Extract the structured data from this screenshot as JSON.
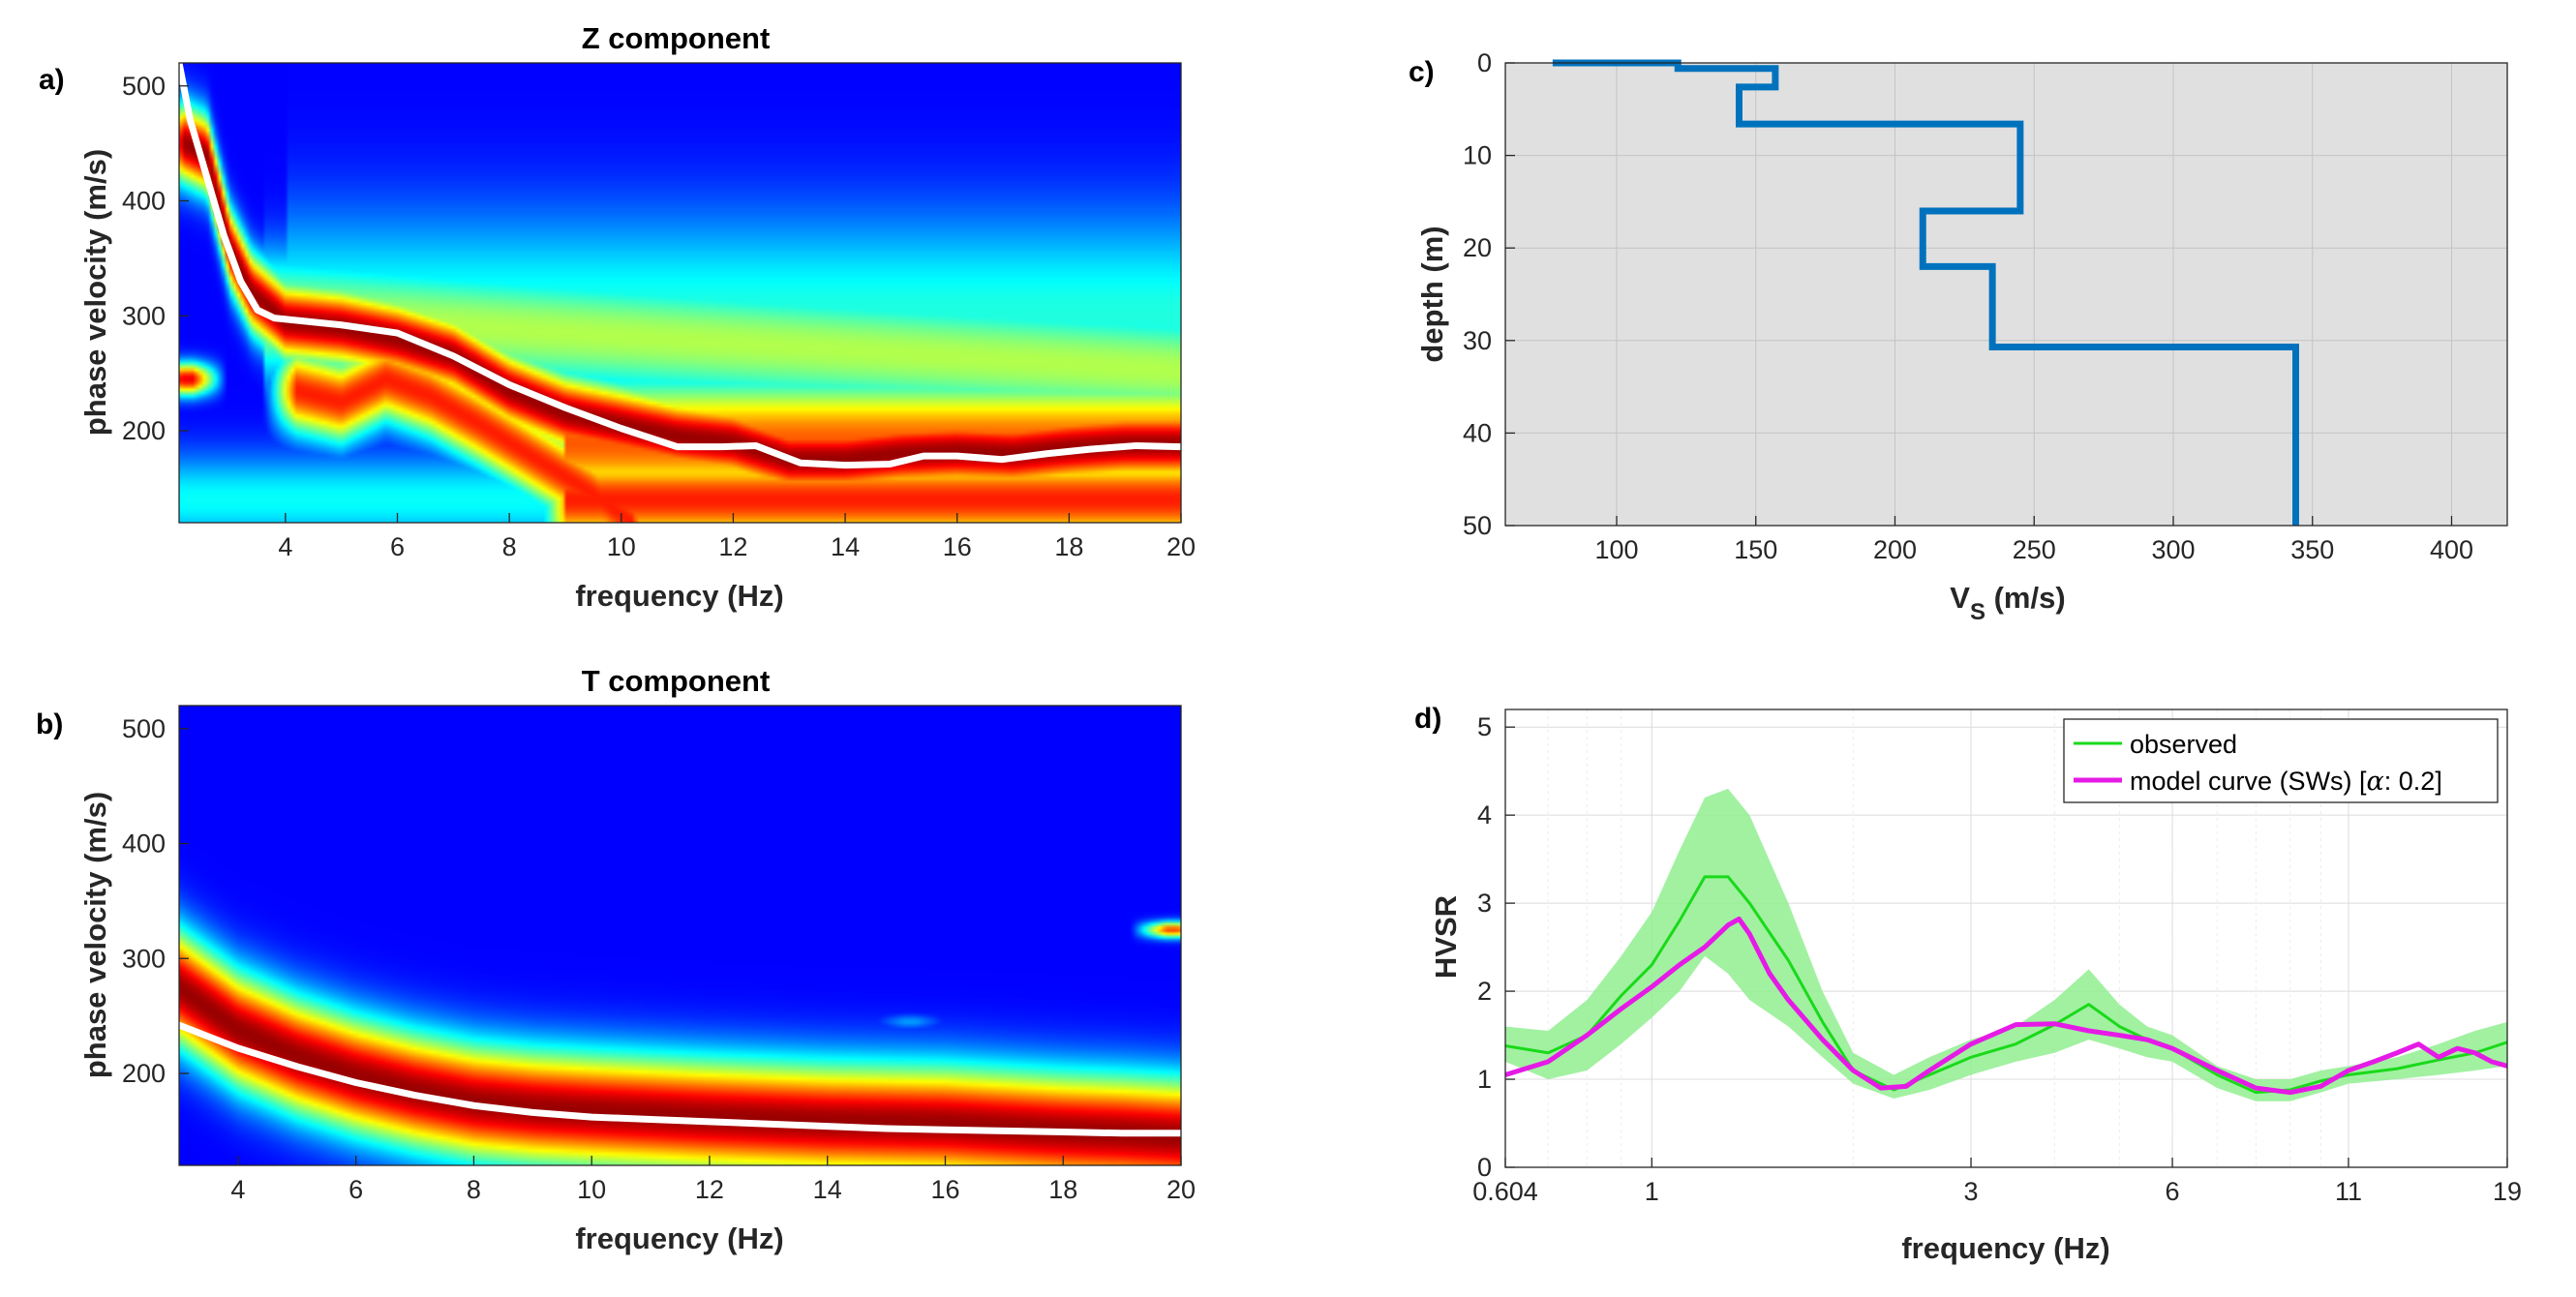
{
  "chart_data": [
    {
      "id": "a",
      "panel_label": "a)",
      "type": "heatmap",
      "title": "Z component",
      "xlabel": "frequency (Hz)",
      "ylabel": "phase velocity (m/s)",
      "xlim": [
        2.1,
        20
      ],
      "ylim": [
        120,
        520
      ],
      "xticks": [
        4,
        6,
        8,
        10,
        12,
        14,
        16,
        18,
        20
      ],
      "yticks": [
        200,
        300,
        400,
        500
      ],
      "colormap": "jet",
      "ridges": [
        {
          "pts": [
            [
              2.2,
              450
            ],
            [
              2.6,
              440
            ],
            [
              3.0,
              360
            ],
            [
              3.4,
              320
            ],
            [
              4,
              295
            ],
            [
              5,
              290
            ],
            [
              6,
              280
            ],
            [
              7,
              265
            ],
            [
              8,
              235
            ],
            [
              9,
              215
            ],
            [
              10,
              205
            ],
            [
              11,
              195
            ],
            [
              12,
              190
            ],
            [
              13,
              175
            ],
            [
              14,
              175
            ],
            [
              15,
              180
            ],
            [
              16,
              182
            ],
            [
              17,
              180
            ],
            [
              18,
              185
            ],
            [
              19,
              188
            ],
            [
              20,
              188
            ]
          ],
          "w": 3.4,
          "amp": 1.0
        },
        {
          "pts": [
            [
              2.15,
              245
            ],
            [
              2.35,
              245
            ]
          ],
          "w": 1.4,
          "amp": 0.9
        },
        {
          "pts": [
            [
              4.2,
              235
            ],
            [
              5,
              225
            ],
            [
              5.8,
              245
            ],
            [
              6.6,
              230
            ],
            [
              7.5,
              205
            ],
            [
              8.5,
              175
            ],
            [
              9.5,
              145
            ],
            [
              10.2,
              120
            ]
          ],
          "w": 3.6,
          "amp": 0.85
        },
        {
          "pts": [
            [
              9,
              140
            ],
            [
              12,
              140
            ],
            [
              16,
              135
            ],
            [
              20,
              135
            ]
          ],
          "w": 8,
          "amp": 0.7
        }
      ],
      "picked_curve": {
        "x": [
          2.1,
          2.3,
          2.6,
          2.9,
          3.2,
          3.5,
          3.8,
          4.2,
          5,
          6,
          7,
          8,
          9,
          10,
          11,
          11.8,
          12.4,
          13.2,
          14,
          14.8,
          15.4,
          16,
          16.8,
          17.6,
          18.4,
          19.2,
          20
        ],
        "y": [
          520,
          470,
          420,
          370,
          330,
          305,
          298,
          296,
          292,
          285,
          265,
          240,
          220,
          202,
          186,
          186,
          187,
          172,
          170,
          171,
          178,
          178,
          175,
          180,
          184,
          187,
          186
        ]
      },
      "picked_color": "#ffffff"
    },
    {
      "id": "b",
      "panel_label": "b)",
      "type": "heatmap",
      "title": "T component",
      "xlabel": "frequency (Hz)",
      "ylabel": "phase velocity (m/s)",
      "xlim": [
        3,
        20
      ],
      "ylim": [
        120,
        520
      ],
      "xticks": [
        4,
        6,
        8,
        10,
        12,
        14,
        16,
        18,
        20
      ],
      "yticks": [
        200,
        300,
        400,
        500
      ],
      "colormap": "jet",
      "ridges": [
        {
          "pts": [
            [
              3,
              275
            ],
            [
              4,
              238
            ],
            [
              5,
              215
            ],
            [
              6,
              198
            ],
            [
              7,
              185
            ],
            [
              8,
              175
            ],
            [
              9,
              170
            ],
            [
              10,
              167
            ],
            [
              12,
              162
            ],
            [
              14,
              158
            ],
            [
              16,
              156
            ],
            [
              18,
              150
            ],
            [
              19,
              148
            ],
            [
              20,
              145
            ]
          ],
          "w": 5,
          "amp": 1.0
        },
        {
          "pts": [
            [
              19.75,
              325
            ],
            [
              19.95,
              325
            ]
          ],
          "w": 0.7,
          "amp": 0.8
        },
        {
          "pts": [
            [
              15.3,
              245
            ],
            [
              15.5,
              245
            ]
          ],
          "w": 0.6,
          "amp": 0.18
        }
      ],
      "picked_curve": {
        "x": [
          3,
          4,
          5,
          6,
          7,
          8,
          9,
          10,
          11,
          12,
          13,
          14,
          15,
          16,
          17,
          18,
          19,
          20
        ],
        "y": [
          242,
          222,
          206,
          192,
          181,
          172,
          166,
          162,
          160,
          158,
          156,
          154,
          152,
          151,
          150,
          149,
          148,
          148
        ]
      },
      "picked_color": "#ffffff"
    },
    {
      "id": "c",
      "panel_label": "c)",
      "type": "line",
      "xlabel": "V",
      "xlabel_sub": "S",
      "xlabel_unit": " (m/s)",
      "ylabel": "depth (m)",
      "xlim": [
        60,
        420
      ],
      "ylim": [
        0,
        50
      ],
      "y_reversed": true,
      "xticks": [
        100,
        150,
        200,
        250,
        300,
        350,
        400
      ],
      "yticks": [
        0,
        10,
        20,
        30,
        40,
        50
      ],
      "grid": true,
      "background": "#e0e0e0",
      "color": "#0072bd",
      "profile": {
        "x": [
          77,
          122,
          122,
          157,
          157,
          144,
          144,
          245,
          245,
          210,
          210,
          235,
          235,
          344,
          344
        ],
        "y": [
          0,
          0,
          0.6,
          0.6,
          2.6,
          2.6,
          6.6,
          6.6,
          16,
          16,
          22,
          22,
          30.7,
          30.7,
          50
        ]
      }
    },
    {
      "id": "d",
      "panel_label": "d)",
      "type": "line",
      "xlabel": "frequency (Hz)",
      "ylabel": "HVSR",
      "x_scale": "log",
      "xlim": [
        0.604,
        19
      ],
      "ylim": [
        0,
        5.2
      ],
      "xticks": [
        0.604,
        1,
        3,
        6,
        11,
        19
      ],
      "xtick_labels": [
        "0.604",
        "1",
        "3",
        "6",
        "11",
        "19"
      ],
      "yticks": [
        0,
        1,
        2,
        3,
        4,
        5
      ],
      "grid": true,
      "legend_position": "top-right",
      "band": {
        "color": "#90ee90",
        "x": [
          0.604,
          0.7,
          0.8,
          0.9,
          1.0,
          1.1,
          1.2,
          1.3,
          1.4,
          1.6,
          1.8,
          2.0,
          2.3,
          2.6,
          3.0,
          3.5,
          4.0,
          4.5,
          5.0,
          5.5,
          6.0,
          7.0,
          8.0,
          9.0,
          10,
          11,
          13,
          15,
          17,
          19
        ],
        "upper": [
          1.6,
          1.55,
          1.9,
          2.4,
          2.9,
          3.6,
          4.2,
          4.3,
          4.0,
          3.0,
          2.0,
          1.3,
          1.05,
          1.25,
          1.45,
          1.6,
          1.9,
          2.25,
          1.85,
          1.6,
          1.5,
          1.15,
          1.0,
          1.0,
          1.1,
          1.15,
          1.25,
          1.4,
          1.55,
          1.65
        ],
        "lower": [
          1.2,
          1.0,
          1.1,
          1.4,
          1.7,
          2.0,
          2.4,
          2.2,
          1.9,
          1.6,
          1.25,
          0.95,
          0.78,
          0.88,
          1.05,
          1.2,
          1.3,
          1.45,
          1.35,
          1.25,
          1.2,
          0.9,
          0.75,
          0.75,
          0.85,
          0.95,
          1.0,
          1.05,
          1.1,
          1.15
        ]
      },
      "series": [
        {
          "name": "observed",
          "color": "#1ad91a",
          "x": [
            0.604,
            0.7,
            0.8,
            0.9,
            1.0,
            1.1,
            1.2,
            1.3,
            1.4,
            1.6,
            1.8,
            2.0,
            2.3,
            2.6,
            3.0,
            3.5,
            4.0,
            4.5,
            5.0,
            5.5,
            6.0,
            7.0,
            8.0,
            9.0,
            10,
            11,
            13,
            15,
            17,
            19
          ],
          "y": [
            1.38,
            1.3,
            1.5,
            1.95,
            2.3,
            2.8,
            3.3,
            3.3,
            3.0,
            2.35,
            1.65,
            1.1,
            0.88,
            1.05,
            1.25,
            1.4,
            1.62,
            1.85,
            1.6,
            1.45,
            1.35,
            1.05,
            0.85,
            0.88,
            0.98,
            1.05,
            1.12,
            1.22,
            1.3,
            1.42
          ]
        },
        {
          "name": "model curve (SWs) [α: 0.2]",
          "name_parts": [
            "model curve (SWs) [",
            "α",
            ": 0.2]"
          ],
          "color": "#e61ae6",
          "x": [
            0.604,
            0.7,
            0.8,
            0.9,
            1.0,
            1.1,
            1.2,
            1.3,
            1.35,
            1.4,
            1.5,
            1.6,
            1.8,
            2.0,
            2.2,
            2.4,
            2.6,
            3.0,
            3.5,
            4.0,
            4.5,
            5.0,
            5.5,
            6.0,
            7.0,
            8.0,
            9.0,
            10,
            11,
            12,
            13,
            14,
            15,
            16,
            17,
            18,
            19
          ],
          "y": [
            1.05,
            1.2,
            1.5,
            1.8,
            2.05,
            2.3,
            2.5,
            2.75,
            2.82,
            2.65,
            2.2,
            1.9,
            1.45,
            1.1,
            0.9,
            0.92,
            1.1,
            1.4,
            1.62,
            1.63,
            1.55,
            1.5,
            1.45,
            1.35,
            1.1,
            0.9,
            0.85,
            0.92,
            1.1,
            1.2,
            1.3,
            1.4,
            1.25,
            1.35,
            1.3,
            1.2,
            1.15
          ]
        }
      ]
    }
  ]
}
